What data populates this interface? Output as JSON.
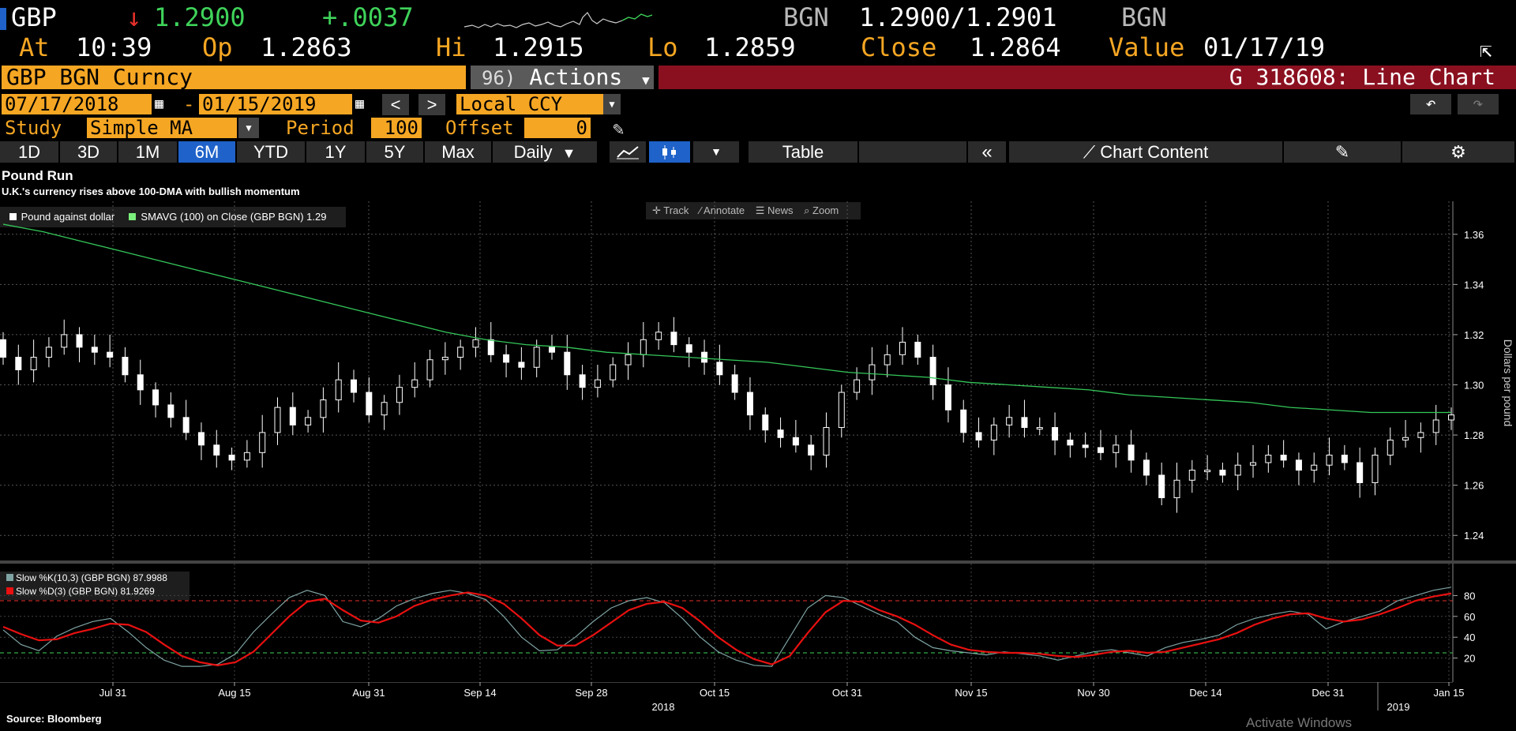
{
  "ticker": {
    "symbol": "GBP",
    "last": "1.2900",
    "change": "+.0037",
    "source_left": "BGN",
    "bid_ask": "1.2900/1.2901",
    "source_right": "BGN"
  },
  "quote": {
    "at_label": "At",
    "time": "10:39",
    "op_label": "Op",
    "open": "1.2863",
    "hi_label": "Hi",
    "high": "1.2915",
    "lo_label": "Lo",
    "low": "1.2859",
    "close_label": "Close",
    "close": "1.2864",
    "value_label": "Value",
    "value_date": "01/17/19"
  },
  "command": {
    "security": "GBP BGN Curncy",
    "actions_num": "96)",
    "actions_label": "Actions",
    "chart_id": "G 318608: Line Chart"
  },
  "range": {
    "start": "07/17/2018",
    "sep": "-",
    "end": "01/15/2019",
    "prev": "<",
    "next": ">",
    "currency": "Local CCY"
  },
  "study": {
    "label": "Study",
    "value": "Simple MA",
    "period_label": "Period",
    "period": "100",
    "offset_label": "Offset",
    "offset": "0"
  },
  "periods": [
    "1D",
    "3D",
    "1M",
    "6M",
    "YTD",
    "1Y",
    "5Y",
    "Max"
  ],
  "active_period": "6M",
  "frequency": "Daily",
  "toolbar": {
    "table_label": "Table",
    "chart_content_label": "Chart Content"
  },
  "chart_title": "Pound Run",
  "chart_subtitle": "U.K.'s currency rises above 100-DMA with bullish momentum",
  "legend": {
    "series1": "Pound against dollar",
    "series2": "SMAVG (100)  on Close (GBP BGN) 1.29"
  },
  "chart_tools": {
    "track": "Track",
    "annotate": "Annotate",
    "news": "News",
    "zoom": "Zoom"
  },
  "stoch_legend": {
    "k": "Slow %K(10,3) (GBP BGN) 87.9988",
    "d": "Slow %D(3) (GBP BGN)   81.9269"
  },
  "source": "Source: Bloomberg",
  "watermark": "Activate Windows",
  "colors": {
    "orange": "#f5a623",
    "green_line": "#34c759",
    "stoch_k": "#7fa3a3",
    "stoch_d": "#e81010",
    "banner_red": "#8a1020",
    "active_blue": "#1f62c9"
  },
  "chart_data": [
    {
      "type": "candlestick",
      "ylabel": "Dollars per pound",
      "ylim": [
        1.23,
        1.37
      ],
      "yticks": [
        "1.24",
        "1.26",
        "1.28",
        "1.30",
        "1.32",
        "1.34",
        "1.36"
      ],
      "xticks": [
        "Jul 31",
        "Aug 15",
        "Aug 31",
        "Sep 14",
        "Sep 28",
        "Oct 15",
        "Oct 31",
        "Nov 15",
        "Nov 30",
        "Dec 14",
        "Dec 31",
        "Jan 15"
      ],
      "year_labels": [
        "2018",
        "2019"
      ],
      "grid": true,
      "closes": [
        1.311,
        1.306,
        1.311,
        1.315,
        1.32,
        1.315,
        1.313,
        1.311,
        1.304,
        1.298,
        1.292,
        1.287,
        1.281,
        1.276,
        1.272,
        1.27,
        1.273,
        1.281,
        1.291,
        1.284,
        1.287,
        1.294,
        1.302,
        1.297,
        1.288,
        1.293,
        1.299,
        1.302,
        1.31,
        1.311,
        1.315,
        1.318,
        1.312,
        1.309,
        1.307,
        1.315,
        1.313,
        1.304,
        1.299,
        1.302,
        1.308,
        1.312,
        1.318,
        1.321,
        1.316,
        1.313,
        1.309,
        1.304,
        1.297,
        1.288,
        1.282,
        1.279,
        1.276,
        1.272,
        1.283,
        1.297,
        1.302,
        1.308,
        1.312,
        1.317,
        1.311,
        1.3,
        1.29,
        1.281,
        1.278,
        1.284,
        1.287,
        1.283,
        1.283,
        1.278,
        1.276,
        1.275,
        1.273,
        1.276,
        1.27,
        1.264,
        1.255,
        1.262,
        1.266,
        1.266,
        1.264,
        1.268,
        1.269,
        1.272,
        1.27,
        1.266,
        1.268,
        1.272,
        1.269,
        1.261,
        1.272,
        1.278,
        1.279,
        1.281,
        1.286,
        1.288
      ],
      "sma100": [
        1.364,
        1.361,
        1.357,
        1.353,
        1.349,
        1.345,
        1.341,
        1.337,
        1.333,
        1.329,
        1.325,
        1.321,
        1.318,
        1.316,
        1.315,
        1.313,
        1.312,
        1.311,
        1.31,
        1.309,
        1.307,
        1.305,
        1.304,
        1.303,
        1.301,
        1.3,
        1.299,
        1.298,
        1.296,
        1.295,
        1.294,
        1.293,
        1.291,
        1.29,
        1.289,
        1.289,
        1.289
      ]
    },
    {
      "type": "line",
      "ylim": [
        0,
        100
      ],
      "yticks": [
        "20",
        "40",
        "60",
        "80"
      ],
      "series": [
        {
          "name": "Slow %K(10,3) (GBP BGN)",
          "values": [
            47,
            33,
            27,
            41,
            49,
            55,
            58,
            45,
            30,
            18,
            12,
            12,
            14,
            24,
            45,
            62,
            78,
            85,
            80,
            55,
            50,
            58,
            70,
            77,
            82,
            85,
            82,
            76,
            60,
            40,
            27,
            28,
            40,
            55,
            68,
            75,
            78,
            73,
            58,
            40,
            26,
            18,
            13,
            12,
            40,
            68,
            80,
            78,
            70,
            62,
            55,
            40,
            30,
            27,
            25,
            23,
            26,
            24,
            22,
            18,
            22,
            26,
            28,
            25,
            22,
            30,
            35,
            38,
            42,
            52,
            58,
            62,
            65,
            62,
            48,
            55,
            60,
            65,
            75,
            80,
            85,
            88
          ]
        },
        {
          "name": "Slow %D(3) (GBP BGN)",
          "values": [
            50,
            43,
            37,
            38,
            44,
            48,
            53,
            52,
            45,
            33,
            22,
            16,
            13,
            16,
            26,
            43,
            60,
            74,
            77,
            66,
            56,
            54,
            60,
            70,
            76,
            80,
            83,
            80,
            72,
            58,
            42,
            32,
            32,
            42,
            54,
            66,
            72,
            74,
            68,
            55,
            40,
            28,
            19,
            14,
            22,
            44,
            64,
            75,
            74,
            66,
            60,
            52,
            42,
            33,
            28,
            26,
            25,
            25,
            24,
            22,
            21,
            23,
            26,
            27,
            25,
            26,
            30,
            34,
            38,
            44,
            52,
            58,
            62,
            63,
            58,
            55,
            57,
            62,
            68,
            75,
            79,
            82
          ]
        }
      ]
    }
  ]
}
